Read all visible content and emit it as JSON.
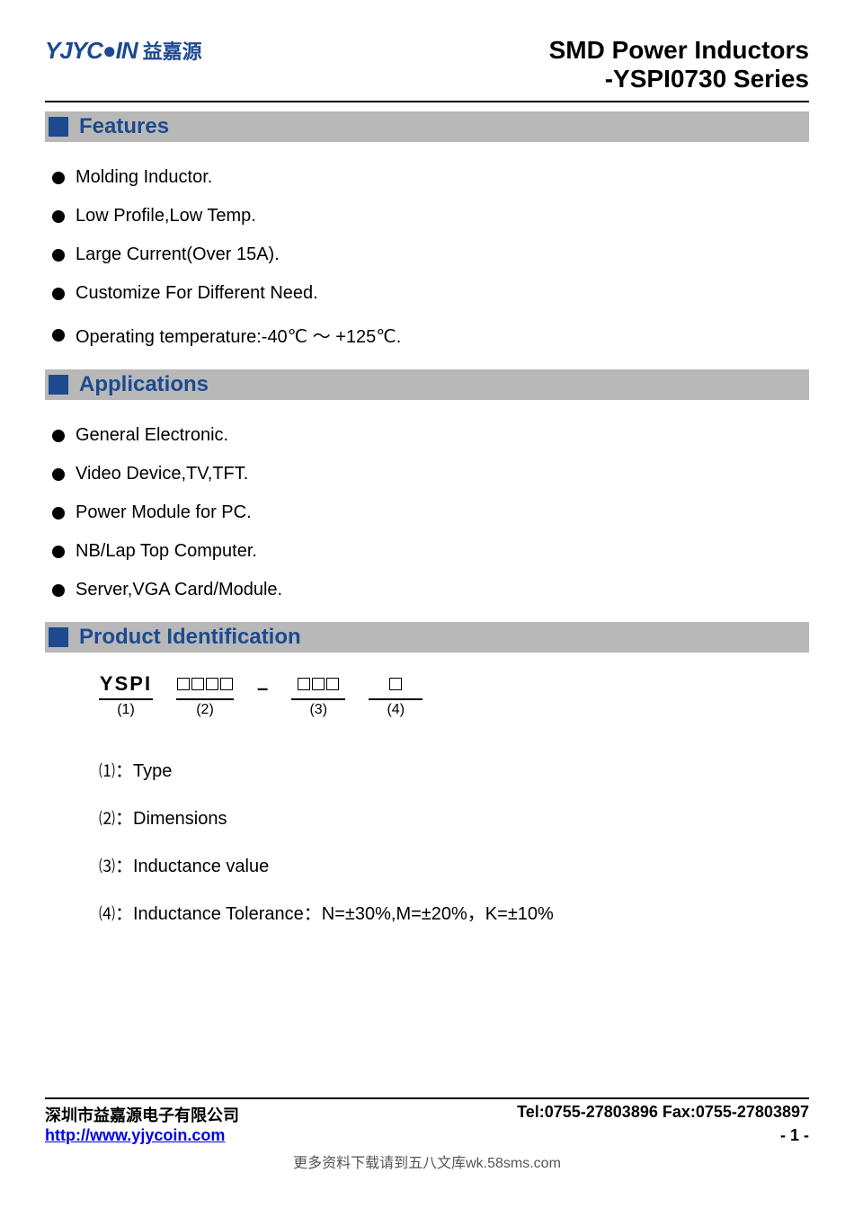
{
  "header": {
    "logo_text": "YJYC●IN",
    "logo_cn": "益嘉源",
    "title_line1": "SMD Power Inductors",
    "title_line2": "-YSPI0730 Series"
  },
  "sections": {
    "features": {
      "title": "Features",
      "items": [
        "Molding Inductor.",
        "Low Profile,Low Temp.",
        "Large Current(Over 15A).",
        "Customize For Different Need.",
        "Operating temperature:-40℃ ～ +125℃."
      ]
    },
    "applications": {
      "title": "Applications",
      "items": [
        "General Electronic.",
        "Video Device,TV,TFT.",
        "Power Module for PC.",
        "NB/Lap Top Computer.",
        "Server,VGA Card/Module."
      ]
    },
    "product_id": {
      "title": "Product Identification",
      "segments": [
        {
          "top": "YSPI",
          "bottom": "(1)"
        },
        {
          "top": "□□□□",
          "bottom": "(2)"
        },
        {
          "top": "□□□",
          "bottom": "(3)"
        },
        {
          "top": "□",
          "bottom": "(4)"
        }
      ],
      "legend": [
        {
          "num": "⑴",
          "text": "：Type"
        },
        {
          "num": "⑵",
          "text": "：Dimensions"
        },
        {
          "num": "⑶",
          "text": "：Inductance value"
        },
        {
          "num": "⑷",
          "text": "：Inductance Tolerance：N=±30%,M=±20%，K=±10%"
        }
      ]
    }
  },
  "footer": {
    "company": "深圳市益嘉源电子有限公司",
    "telfax": "Tel:0755-27803896   Fax:0755-27803897",
    "url": "http://www.yjycoin.com",
    "page": "- 1 -",
    "bottom_note": "更多资料下载请到五八文库wk.58sms.com"
  },
  "colors": {
    "brand_blue": "#1d4a8f",
    "header_gray": "#b8b8b8",
    "text": "#000000",
    "link": "#0000ee"
  }
}
